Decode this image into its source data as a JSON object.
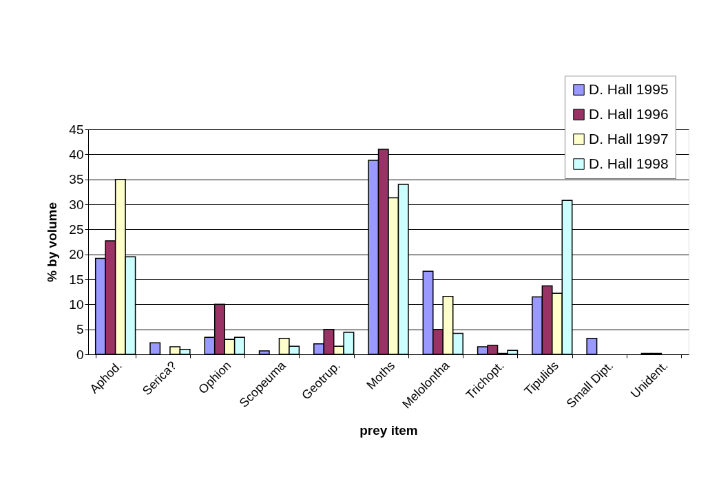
{
  "chart_data": {
    "type": "bar",
    "xlabel": "prey item",
    "ylabel": "% by volume",
    "categories": [
      "Aphod.",
      "Serica?",
      "Ophion",
      "Scopeuma",
      "Geotrup.",
      "Moths",
      "Melolontha",
      "Trichopt.",
      "Tipulids",
      "Small Dipt.",
      "Unident."
    ],
    "series": [
      {
        "name": "D. Hall 1995",
        "color": "#9999ff",
        "values": [
          19.2,
          2.3,
          3.4,
          0.7,
          2.1,
          38.8,
          16.6,
          1.5,
          11.5,
          3.2,
          0.2
        ]
      },
      {
        "name": "D. Hall 1996",
        "color": "#993366",
        "values": [
          22.7,
          null,
          10,
          null,
          5,
          41,
          5,
          1.8,
          13.7,
          null,
          0.2
        ]
      },
      {
        "name": "D. Hall 1997",
        "color": "#ffffcc",
        "values": [
          35,
          1.5,
          3,
          3.2,
          1.6,
          31.3,
          11.6,
          0.2,
          12.2,
          null,
          null
        ]
      },
      {
        "name": "D. Hall 1998",
        "color": "#ccffff",
        "values": [
          19.5,
          1,
          3.4,
          1.6,
          4.4,
          34,
          4.2,
          0.8,
          30.8,
          null,
          null
        ]
      }
    ],
    "ylim": [
      0,
      45
    ],
    "yticks": [
      0,
      5,
      10,
      15,
      20,
      25,
      30,
      35,
      40,
      45
    ],
    "grid": "y",
    "legend": "top right"
  }
}
